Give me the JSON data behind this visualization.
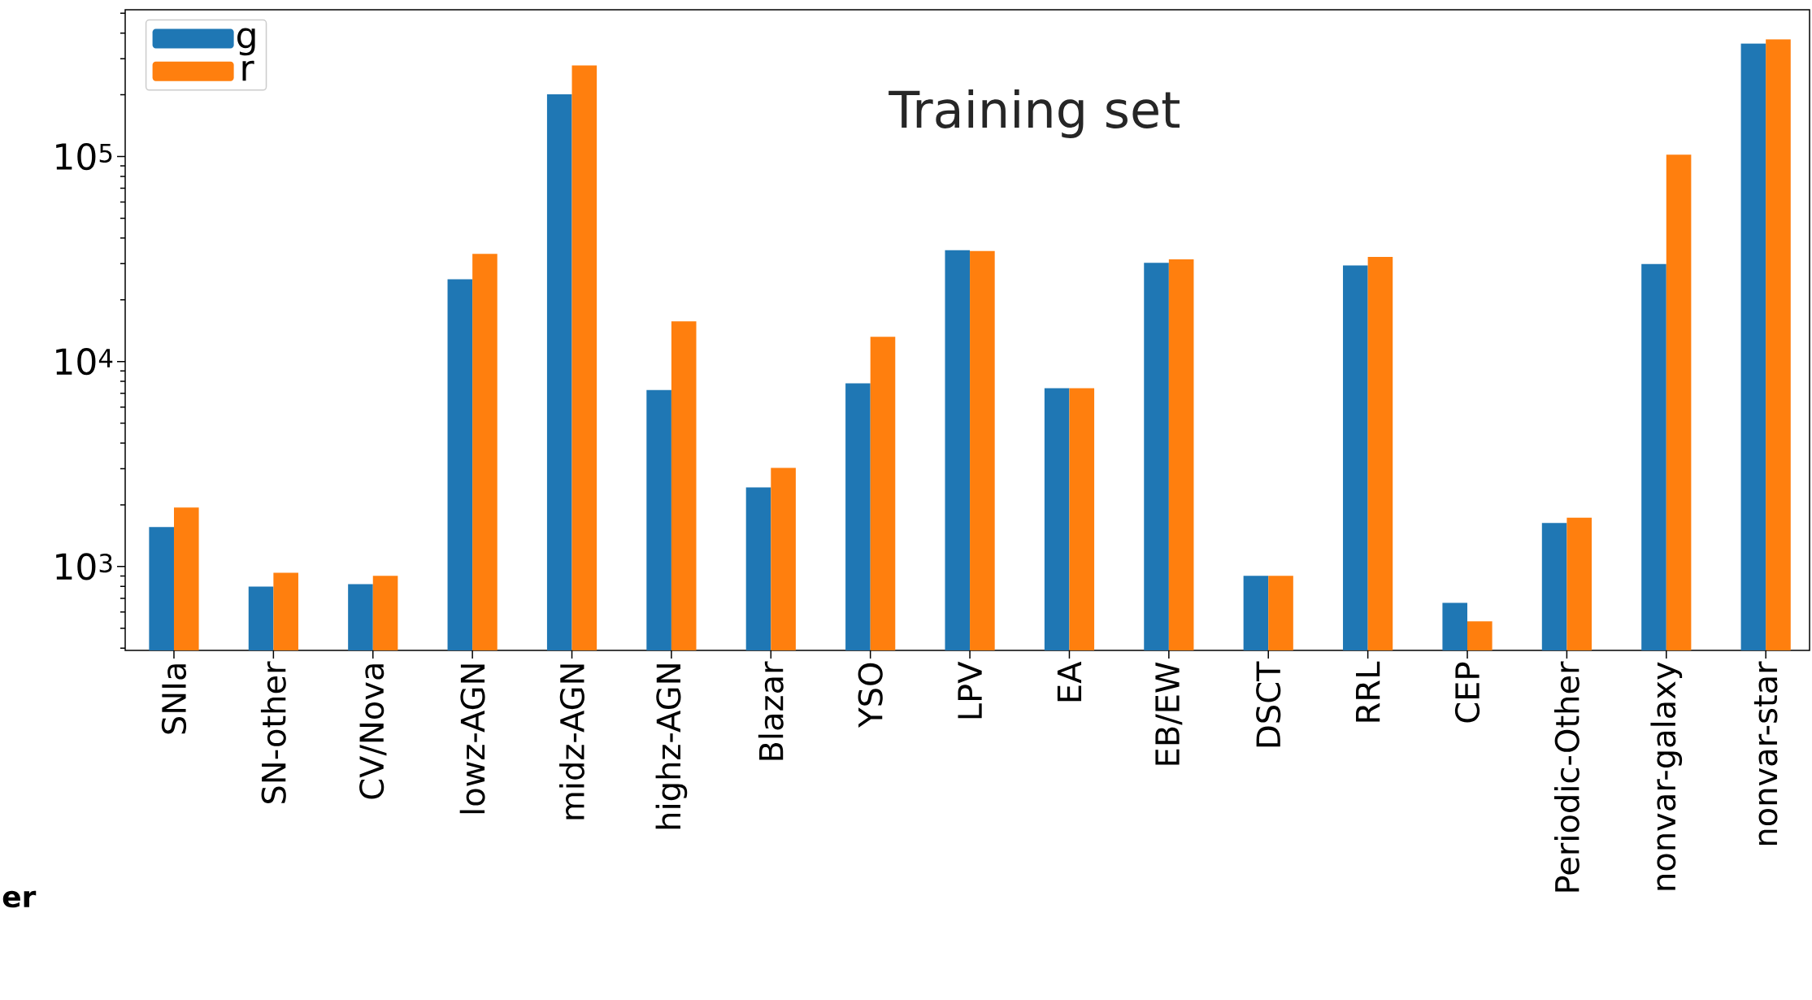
{
  "chart_data": {
    "type": "bar",
    "title": "Training set",
    "categories": [
      "SNIa",
      "SN-other",
      "CV/Nova",
      "lowz-AGN",
      "midz-AGN",
      "highz-AGN",
      "Blazar",
      "YSO",
      "LPV",
      "EA",
      "EB/EW",
      "DSCT",
      "RRL",
      "CEP",
      "Periodic-Other",
      "nonvar-galaxy",
      "nonvar-star"
    ],
    "series": [
      {
        "name": "g",
        "color": "#1f77b4",
        "values": [
          1560,
          798,
          820,
          25200,
          201000,
          7260,
          2430,
          7830,
          34900,
          7410,
          30300,
          902,
          29400,
          665,
          1630,
          29900,
          356000
        ]
      },
      {
        "name": "r",
        "color": "#ff7f0e",
        "values": [
          1940,
          933,
          902,
          33500,
          278000,
          15700,
          3030,
          13200,
          34600,
          7410,
          31500,
          902,
          32400,
          541,
          1730,
          102000,
          373000
        ]
      }
    ],
    "log": true,
    "ylim": [
      390,
      520000
    ],
    "yticks": [
      {
        "value": 1000,
        "label": "10$^{3}$"
      },
      {
        "value": 10000,
        "label": "10$^{4}$"
      },
      {
        "value": 100000,
        "label": "10$^{5}$"
      }
    ],
    "legend": "top left",
    "grid": false,
    "annotations": [
      "**er**"
    ]
  }
}
